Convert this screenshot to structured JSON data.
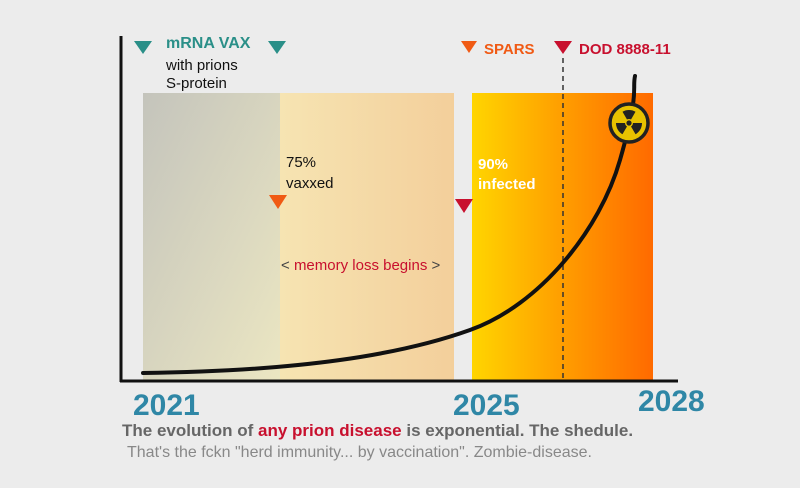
{
  "markers": {
    "mrna_title": "mRNA VAX",
    "mrna_line2": "with prions",
    "mrna_line3": "S-protein",
    "spars": "SPARS",
    "dod": "DOD 8888-11",
    "vaxxed_pct": "75%",
    "vaxxed_word": "vaxxed",
    "infected_pct": "90%",
    "infected_word": "infected",
    "memory_loss": "memory loss begins",
    "bracket_left": "<",
    "bracket_right": ">"
  },
  "years": {
    "y2021": "2021",
    "y2025": "2025",
    "y2028": "2028"
  },
  "caption": {
    "part1": "The evolution of ",
    "highlight": "any prion disease",
    "part2": " is exponential. The shedule.",
    "line2": "That's the fckn \"herd immunity... by vaccination\". Zombie-disease."
  },
  "colors": {
    "teal": "#2a8f88",
    "orange": "#f05a14",
    "red": "#c8102e",
    "year_blue": "#2f87a6"
  },
  "icon": "radioactive-hazard-icon"
}
